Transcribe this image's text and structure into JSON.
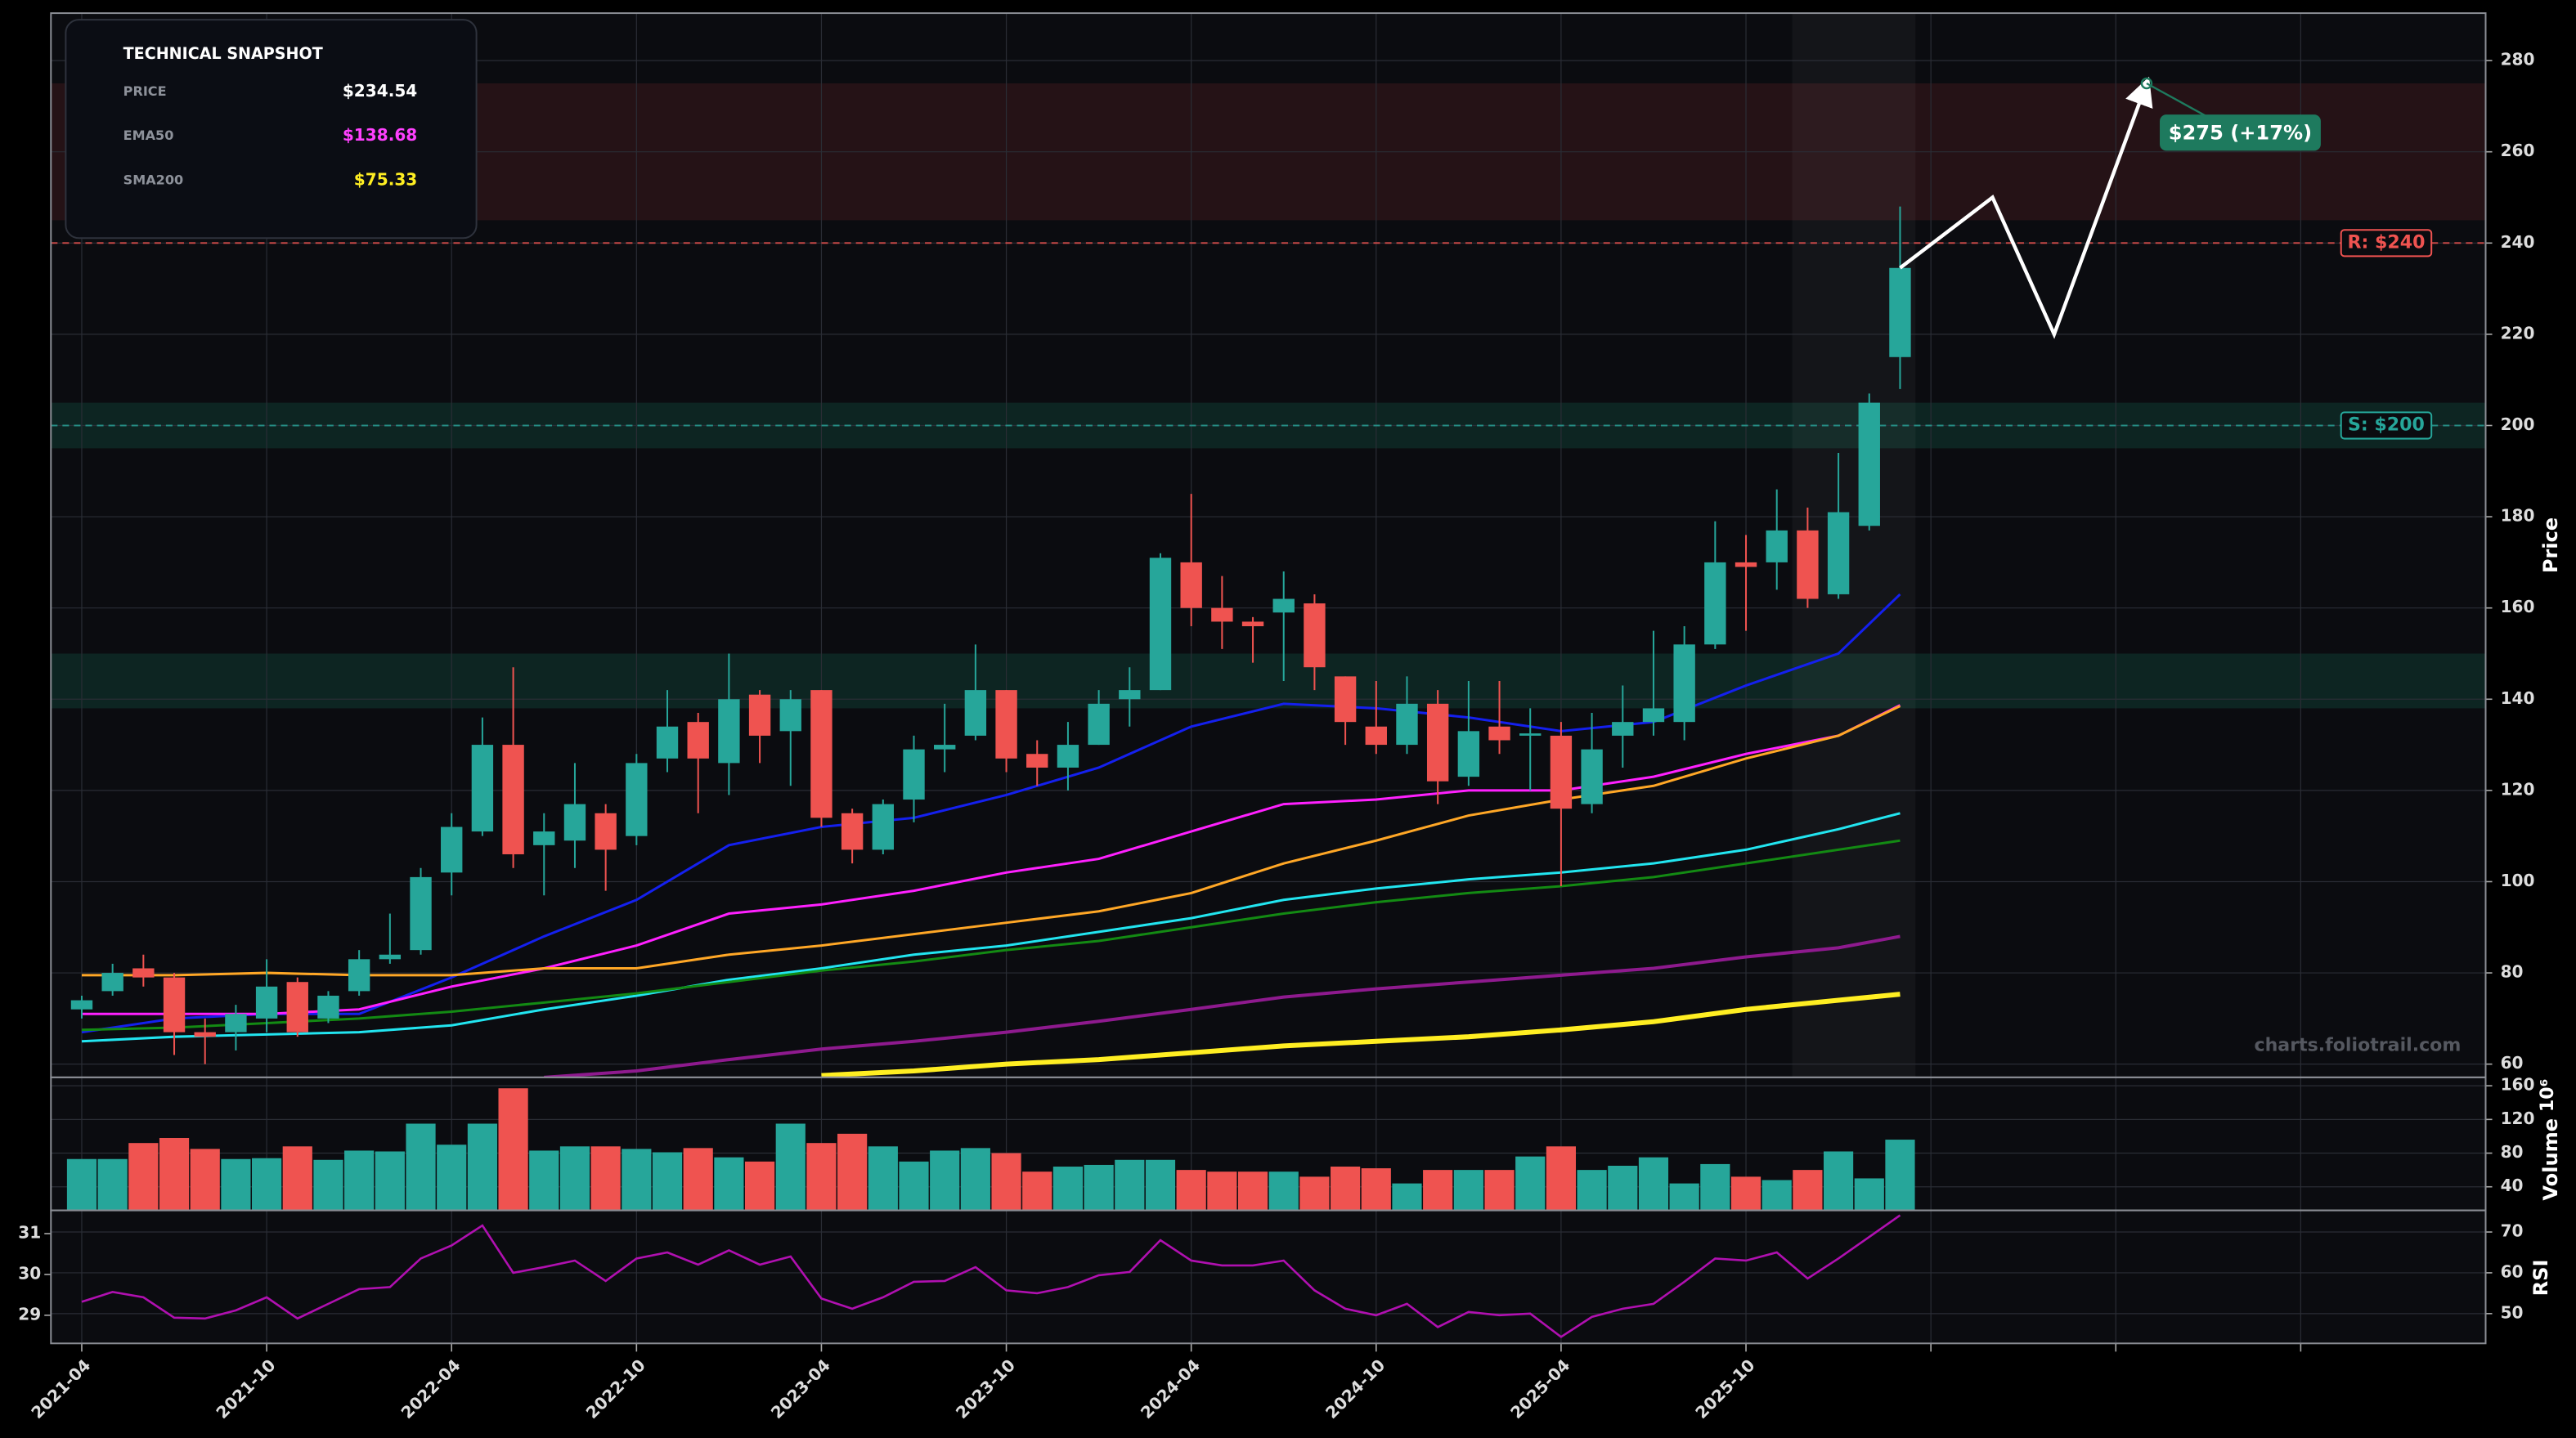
{
  "snapshot": {
    "title": "TECHNICAL SNAPSHOT",
    "rows": [
      {
        "label": "PRICE",
        "value": "$234.54",
        "color": "#ffffff"
      },
      {
        "label": "EMA50",
        "value": "$138.68",
        "color": "#ff40ff"
      },
      {
        "label": "SMA200",
        "value": "$75.33",
        "color": "#ffee22"
      }
    ]
  },
  "watermark": "charts.foliotrail.com",
  "chart_data": [
    {
      "type": "candlestick",
      "ylabel": "Price",
      "dates": [
        "2021-04",
        "2021-05",
        "2021-06",
        "2021-07",
        "2021-08",
        "2021-09",
        "2021-10",
        "2021-11",
        "2021-12",
        "2022-01",
        "2022-02",
        "2022-03",
        "2022-04",
        "2022-05",
        "2022-06",
        "2022-07",
        "2022-08",
        "2022-09",
        "2022-10",
        "2022-11",
        "2022-12",
        "2023-01",
        "2023-02",
        "2023-03",
        "2023-04",
        "2023-05",
        "2023-06",
        "2023-07",
        "2023-08",
        "2023-09",
        "2023-10",
        "2023-11",
        "2023-12",
        "2024-01",
        "2024-02",
        "2024-03",
        "2024-04",
        "2024-05",
        "2024-06",
        "2024-07",
        "2024-08",
        "2024-09",
        "2024-10",
        "2024-11",
        "2024-12",
        "2025-01",
        "2025-02",
        "2025-03",
        "2025-04",
        "2025-05",
        "2025-06",
        "2025-07",
        "2025-08",
        "2025-09",
        "2025-10",
        "2025-11",
        "2025-12",
        "2026-01",
        "2026-02",
        "2026-03"
      ],
      "open": [
        72,
        76,
        81,
        79,
        67,
        67,
        70,
        78,
        70,
        76,
        83,
        85,
        102,
        111,
        130,
        108,
        109,
        115,
        110,
        127,
        135,
        126,
        141,
        133,
        142,
        115,
        107,
        118,
        129,
        132,
        142,
        128,
        125,
        130,
        140,
        142,
        170,
        160,
        157,
        159,
        161,
        145,
        134,
        130,
        139,
        123,
        134,
        132,
        132,
        117,
        132,
        135,
        135,
        152,
        170,
        170,
        177,
        163,
        178,
        215
      ],
      "high": [
        75,
        82,
        84,
        80,
        70,
        73,
        83,
        79,
        76,
        85,
        93,
        103,
        115,
        136,
        147,
        115,
        126,
        117,
        128,
        142,
        137,
        150,
        142,
        142,
        142,
        116,
        118,
        132,
        139,
        152,
        142,
        131,
        135,
        142,
        147,
        172,
        185,
        167,
        158,
        168,
        163,
        145,
        144,
        145,
        142,
        144,
        144,
        138,
        135,
        137,
        143,
        155,
        156,
        179,
        176,
        186,
        182,
        194,
        207,
        248
      ],
      "low": [
        70,
        75,
        77,
        62,
        60,
        63,
        67,
        66,
        69,
        75,
        82,
        84,
        97,
        110,
        103,
        97,
        103,
        98,
        108,
        124,
        115,
        119,
        126,
        121,
        112,
        104,
        106,
        113,
        124,
        131,
        124,
        121,
        120,
        130,
        134,
        142,
        156,
        151,
        148,
        144,
        142,
        130,
        128,
        128,
        117,
        121,
        128,
        120,
        99,
        115,
        125,
        132,
        131,
        151,
        155,
        164,
        160,
        162,
        177,
        208
      ],
      "close": [
        74,
        80,
        79,
        67,
        66,
        71,
        77,
        67,
        75,
        83,
        84,
        101,
        112,
        130,
        106,
        111,
        117,
        107,
        126,
        134,
        127,
        140,
        132,
        140,
        114,
        107,
        117,
        129,
        130,
        142,
        127,
        125,
        130,
        139,
        142,
        171,
        160,
        157,
        156,
        162,
        147,
        135,
        130,
        139,
        122,
        133,
        131,
        132.5,
        116,
        129,
        135,
        138,
        152,
        170,
        169,
        177,
        162,
        181,
        205,
        234.54
      ],
      "up_color": "#26a69a",
      "down_color": "#ef5350",
      "overlay_x": [
        "2021-04",
        "2021-07",
        "2021-10",
        "2022-01",
        "2022-04",
        "2022-07",
        "2022-10",
        "2023-01",
        "2023-04",
        "2023-07",
        "2023-10",
        "2024-01",
        "2024-04",
        "2024-07",
        "2024-10",
        "2025-01",
        "2025-04",
        "2025-07",
        "2025-10",
        "2026-01",
        "2026-03"
      ],
      "overlays": [
        {
          "color": "#1420ee",
          "width": 1.5,
          "values": [
            67,
            70,
            71,
            71,
            79,
            88,
            96,
            108,
            112,
            114,
            119,
            125,
            134,
            139,
            138,
            136,
            133,
            135,
            143,
            150,
            163
          ]
        },
        {
          "color": "#ff20ff",
          "width": 1.5,
          "values": [
            71,
            71,
            71,
            72,
            77,
            81,
            86,
            93,
            95,
            98,
            102,
            105,
            111,
            117,
            118,
            120,
            120,
            123,
            128,
            132,
            138.68
          ]
        },
        {
          "color": "#ffa726",
          "width": 1.5,
          "values": [
            79.5,
            79.5,
            80,
            79.5,
            79.5,
            81,
            81,
            84,
            86,
            88.5,
            91,
            93.5,
            97.5,
            104,
            109,
            114.5,
            118,
            121,
            127,
            132,
            138.5
          ]
        },
        {
          "color": "#22e5f0",
          "width": 1.5,
          "values": [
            65,
            66,
            66.5,
            67,
            68.5,
            72,
            75,
            78.5,
            81,
            84,
            86,
            89,
            92,
            96,
            98.5,
            100.5,
            102,
            104,
            107,
            111.5,
            115
          ]
        },
        {
          "color": "#138a13",
          "width": 1.5,
          "values": [
            67.5,
            68,
            69,
            70,
            71.5,
            73.5,
            75.5,
            78,
            80.5,
            82.5,
            85,
            87,
            90,
            93,
            95.5,
            97.5,
            99,
            101,
            104,
            107,
            109
          ]
        },
        {
          "color": "#8e1a8e",
          "width": 2,
          "values": [
            null,
            null,
            null,
            null,
            null,
            57.1,
            58.5,
            61,
            63.3,
            65,
            67,
            69.4,
            72,
            74.7,
            76.5,
            78,
            79.5,
            81,
            83.5,
            85.5,
            88
          ]
        },
        {
          "color": "#ffee22",
          "width": 3,
          "values": [
            null,
            null,
            null,
            null,
            null,
            null,
            null,
            null,
            57.5,
            58.5,
            60,
            61,
            62.5,
            64,
            65,
            66,
            67.5,
            69.3,
            72,
            74,
            75.33
          ]
        }
      ],
      "zones": [
        {
          "range": [
            245,
            275
          ],
          "color": "#2a1418"
        },
        {
          "range": [
            195,
            205
          ],
          "color": "#0e2a26"
        },
        {
          "range": [
            138,
            150
          ],
          "color": "#0e2a26"
        }
      ],
      "levels": [
        {
          "value": 240,
          "label": "R: $240",
          "color": "#ef5350"
        },
        {
          "value": 200,
          "label": "S: $200",
          "color": "#26a69a"
        }
      ],
      "highlight": [
        "2025-12",
        "2026-03"
      ],
      "projection": {
        "x": [
          "2026-03",
          "2026-06",
          "2026-08",
          "2026-11"
        ],
        "values": [
          234.54,
          250,
          220,
          275
        ],
        "color": "#ffffff",
        "label": "$275 (+17%)",
        "label_color": "#1e7a5e"
      },
      "ylim": [
        57.1,
        290.4
      ],
      "yticks": [
        60,
        80,
        100,
        120,
        140,
        160,
        180,
        200,
        220,
        240,
        260,
        280
      ],
      "grid": true
    },
    {
      "type": "bar",
      "ylabel": "Volume",
      "scale_label": "10⁶",
      "values": [
        73,
        73,
        92,
        98,
        85,
        73,
        74,
        88,
        72,
        83,
        82,
        115,
        90,
        115,
        157,
        83,
        88,
        88,
        85,
        81,
        86,
        75,
        70,
        115,
        92,
        103,
        88,
        70,
        83,
        86,
        80,
        58,
        64,
        66,
        72,
        72,
        60,
        58,
        58,
        58,
        52,
        64,
        62,
        44,
        60,
        60,
        60,
        76,
        88,
        60,
        65,
        75,
        44,
        67,
        52,
        48,
        60,
        82,
        50,
        96
      ],
      "ylim": [
        12,
        170
      ],
      "yticks": [
        40,
        80,
        120,
        160
      ],
      "grid": true
    },
    {
      "type": "line",
      "ylabel": "RSI",
      "color": "#b010b0",
      "values": [
        52.9,
        55.3,
        54,
        49,
        48.8,
        50.8,
        54,
        48.8,
        52.4,
        56,
        56.5,
        63.5,
        66.7,
        71.6,
        60,
        61.4,
        63,
        58,
        63.5,
        65,
        62,
        65.5,
        62,
        64,
        53.7,
        51.2,
        54,
        57.8,
        58,
        61.4,
        55.7,
        55,
        56.5,
        59.4,
        60.2,
        68,
        63,
        61.8,
        61.8,
        63,
        55.7,
        51.2,
        49.6,
        52.4,
        46.7,
        50.4,
        49.6,
        50,
        44.3,
        49.2,
        51.2,
        52.4,
        57.8,
        63.5,
        63,
        65,
        58.6,
        63.5,
        68.8,
        74.1
      ],
      "ylim": [
        42.7,
        75.3
      ],
      "yticks": [
        50,
        60,
        70
      ],
      "y2lim": [
        28.31,
        31.57
      ],
      "y2ticks": [
        29,
        30,
        31
      ],
      "xlim": [
        "2021-03",
        "2027-10"
      ],
      "xticks": [
        "2021-04",
        "2021-10",
        "2022-04",
        "2022-10",
        "2023-04",
        "2023-10",
        "2024-04",
        "2024-10",
        "2025-04",
        "2025-10"
      ],
      "minor_xticks": [
        "2026-04",
        "2026-10",
        "2027-04"
      ],
      "grid": true
    }
  ]
}
